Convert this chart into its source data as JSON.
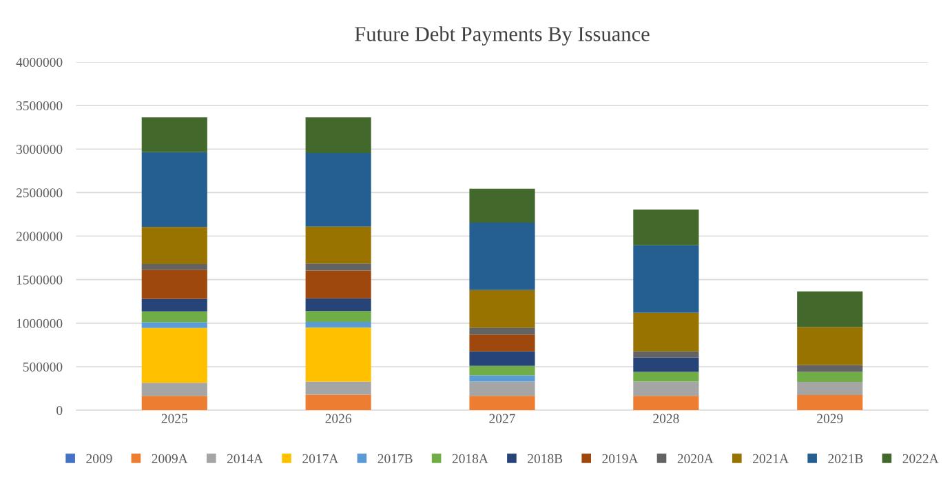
{
  "chart_data": {
    "type": "bar",
    "title": "Future Debt Payments By Issuance",
    "stacked": true,
    "categories": [
      "2025",
      "2026",
      "2027",
      "2028",
      "2029"
    ],
    "series": [
      {
        "name": "2009",
        "color": "#4472c4",
        "values": [
          0,
          0,
          0,
          0,
          0
        ]
      },
      {
        "name": "2009A",
        "color": "#ed7d31",
        "values": [
          165000,
          180000,
          165000,
          165000,
          175000
        ]
      },
      {
        "name": "2014A",
        "color": "#a5a5a5",
        "values": [
          150000,
          150000,
          165000,
          165000,
          150000
        ]
      },
      {
        "name": "2017A",
        "color": "#ffc000",
        "values": [
          630000,
          620000,
          0,
          0,
          0
        ]
      },
      {
        "name": "2017B",
        "color": "#5b9bd5",
        "values": [
          65000,
          65000,
          70000,
          0,
          0
        ]
      },
      {
        "name": "2018A",
        "color": "#70ad47",
        "values": [
          125000,
          125000,
          110000,
          110000,
          115000
        ]
      },
      {
        "name": "2018B",
        "color": "#264478",
        "values": [
          145000,
          145000,
          165000,
          165000,
          0
        ]
      },
      {
        "name": "2019A",
        "color": "#9e480e",
        "values": [
          335000,
          320000,
          195000,
          0,
          0
        ]
      },
      {
        "name": "2020A",
        "color": "#636363",
        "values": [
          65000,
          80000,
          80000,
          70000,
          80000
        ]
      },
      {
        "name": "2021A",
        "color": "#997300",
        "values": [
          425000,
          425000,
          430000,
          445000,
          435000
        ]
      },
      {
        "name": "2021B",
        "color": "#255e91",
        "values": [
          860000,
          845000,
          775000,
          775000,
          0
        ]
      },
      {
        "name": "2022A",
        "color": "#43682b",
        "values": [
          400000,
          410000,
          390000,
          410000,
          410000
        ]
      }
    ],
    "ylim": [
      0,
      4000000
    ],
    "yticks": [
      0,
      500000,
      1000000,
      1500000,
      2000000,
      2500000,
      3000000,
      3500000,
      4000000
    ],
    "grid": "y",
    "legend": "bottom"
  }
}
